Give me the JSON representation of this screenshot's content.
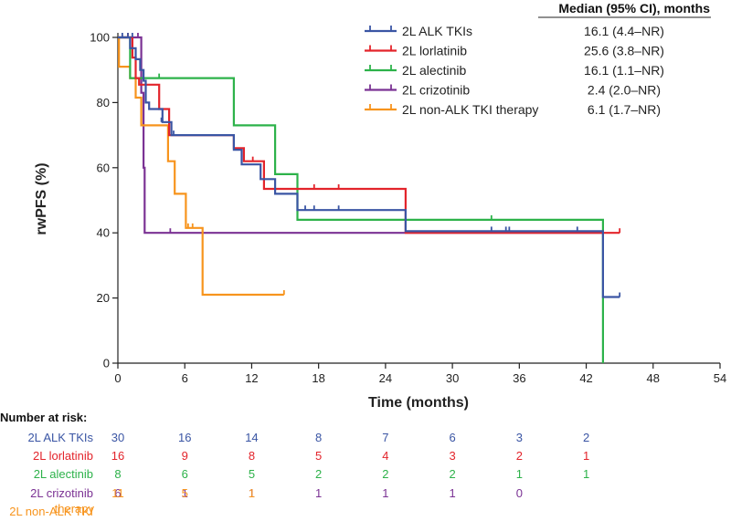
{
  "chart_data": {
    "type": "line",
    "subtype": "kaplan-meier",
    "xlabel": "Time (months)",
    "ylabel": "rwPFS (%)",
    "xlim": [
      0,
      54
    ],
    "ylim": [
      0,
      100
    ],
    "xticks": [
      0,
      6,
      12,
      18,
      24,
      30,
      36,
      42,
      48,
      54
    ],
    "yticks": [
      0,
      20,
      40,
      60,
      80,
      100
    ],
    "grid": false,
    "legend_position": "top-right",
    "median_header": "Median (95% CI), months",
    "series": [
      {
        "name": "2L ALK TKIs",
        "color": "#3a55a4",
        "median": "16.1 (4.4–NR)",
        "steps": [
          [
            0,
            100
          ],
          [
            1.1,
            96.7
          ],
          [
            1.6,
            93.3
          ],
          [
            2.0,
            90
          ],
          [
            2.3,
            86.7
          ],
          [
            2.5,
            80
          ],
          [
            2.8,
            78
          ],
          [
            4.0,
            74
          ],
          [
            4.8,
            70
          ],
          [
            10.4,
            65.5
          ],
          [
            11.1,
            61
          ],
          [
            12.8,
            56.5
          ],
          [
            14.1,
            52
          ],
          [
            16.1,
            47
          ],
          [
            25.8,
            40.5
          ],
          [
            43.5,
            20.3
          ],
          [
            45,
            20.3
          ]
        ],
        "censors": [
          [
            0.4,
            100
          ],
          [
            0.9,
            100
          ],
          [
            1.3,
            100
          ],
          [
            3.9,
            74
          ],
          [
            5.0,
            70
          ],
          [
            16.8,
            47
          ],
          [
            17.6,
            47
          ],
          [
            19.8,
            47
          ],
          [
            33.5,
            40.5
          ],
          [
            34.8,
            40.5
          ],
          [
            35.1,
            40.5
          ],
          [
            41.2,
            40.5
          ],
          [
            45,
            20.3
          ]
        ],
        "risk": [
          30,
          16,
          14,
          8,
          7,
          6,
          3,
          2
        ]
      },
      {
        "name": "2L lorlatinib",
        "color": "#e3242b",
        "median": "25.6 (3.8–NR)",
        "steps": [
          [
            0,
            100
          ],
          [
            1.3,
            93.8
          ],
          [
            1.6,
            87.5
          ],
          [
            1.9,
            85.5
          ],
          [
            3.7,
            78
          ],
          [
            4.6,
            70
          ],
          [
            10.4,
            66
          ],
          [
            11.3,
            62
          ],
          [
            13.1,
            53.5
          ],
          [
            25.8,
            40
          ],
          [
            45,
            40
          ]
        ],
        "censors": [
          [
            0.9,
            100
          ],
          [
            12.1,
            62
          ],
          [
            17.6,
            53.5
          ],
          [
            19.8,
            53.5
          ],
          [
            45,
            40
          ]
        ],
        "risk": [
          16,
          9,
          8,
          5,
          4,
          3,
          2,
          1
        ]
      },
      {
        "name": "2L alectinib",
        "color": "#2db24a",
        "median": "16.1 (1.1–NR)",
        "steps": [
          [
            0,
            100
          ],
          [
            1.1,
            87.5
          ],
          [
            10.4,
            73
          ],
          [
            14.1,
            58
          ],
          [
            16.1,
            44
          ],
          [
            43.5,
            0
          ]
        ],
        "censors": [
          [
            3.7,
            87.5
          ],
          [
            33.5,
            44
          ]
        ],
        "risk": [
          8,
          6,
          5,
          2,
          2,
          2,
          1,
          1
        ]
      },
      {
        "name": "2L crizotinib",
        "color": "#7b3294",
        "median": "2.4 (2.0–NR)",
        "steps": [
          [
            0,
            100
          ],
          [
            2.1,
            83
          ],
          [
            2.3,
            60
          ],
          [
            2.4,
            40
          ],
          [
            43.5,
            40
          ]
        ],
        "censors": [
          [
            1.8,
            100
          ],
          [
            4.7,
            40
          ]
        ],
        "risk": [
          6,
          1,
          1,
          1,
          1,
          1,
          0
        ]
      },
      {
        "name": "2L non-ALK TKI therapy",
        "color": "#f7941d",
        "median": "6.1 (1.7–NR)",
        "steps": [
          [
            0,
            100
          ],
          [
            0.1,
            91
          ],
          [
            1.1,
            87.5
          ],
          [
            1.6,
            81.5
          ],
          [
            2.1,
            73
          ],
          [
            4.5,
            62
          ],
          [
            5.1,
            52
          ],
          [
            6.1,
            41.5
          ],
          [
            7.6,
            21
          ],
          [
            14.9,
            21
          ]
        ],
        "censors": [
          [
            6.3,
            41.5
          ],
          [
            6.7,
            41.5
          ],
          [
            14.9,
            21
          ]
        ],
        "risk": [
          11,
          5,
          1
        ]
      }
    ],
    "risk_table": {
      "title": "Number at risk:",
      "times": [
        0,
        6,
        12,
        18,
        24,
        30,
        36,
        42
      ],
      "row_labels": [
        "2L ALK TKIs",
        "2L lorlatinib",
        "2L alectinib",
        "2L crizotinib",
        "2L non-ALK TKI",
        "therapy"
      ]
    }
  }
}
